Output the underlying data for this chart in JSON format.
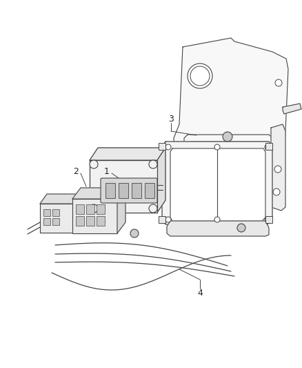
{
  "background_color": "#ffffff",
  "line_color": "#444444",
  "label_color": "#222222",
  "figsize": [
    4.38,
    5.33
  ],
  "dpi": 100
}
